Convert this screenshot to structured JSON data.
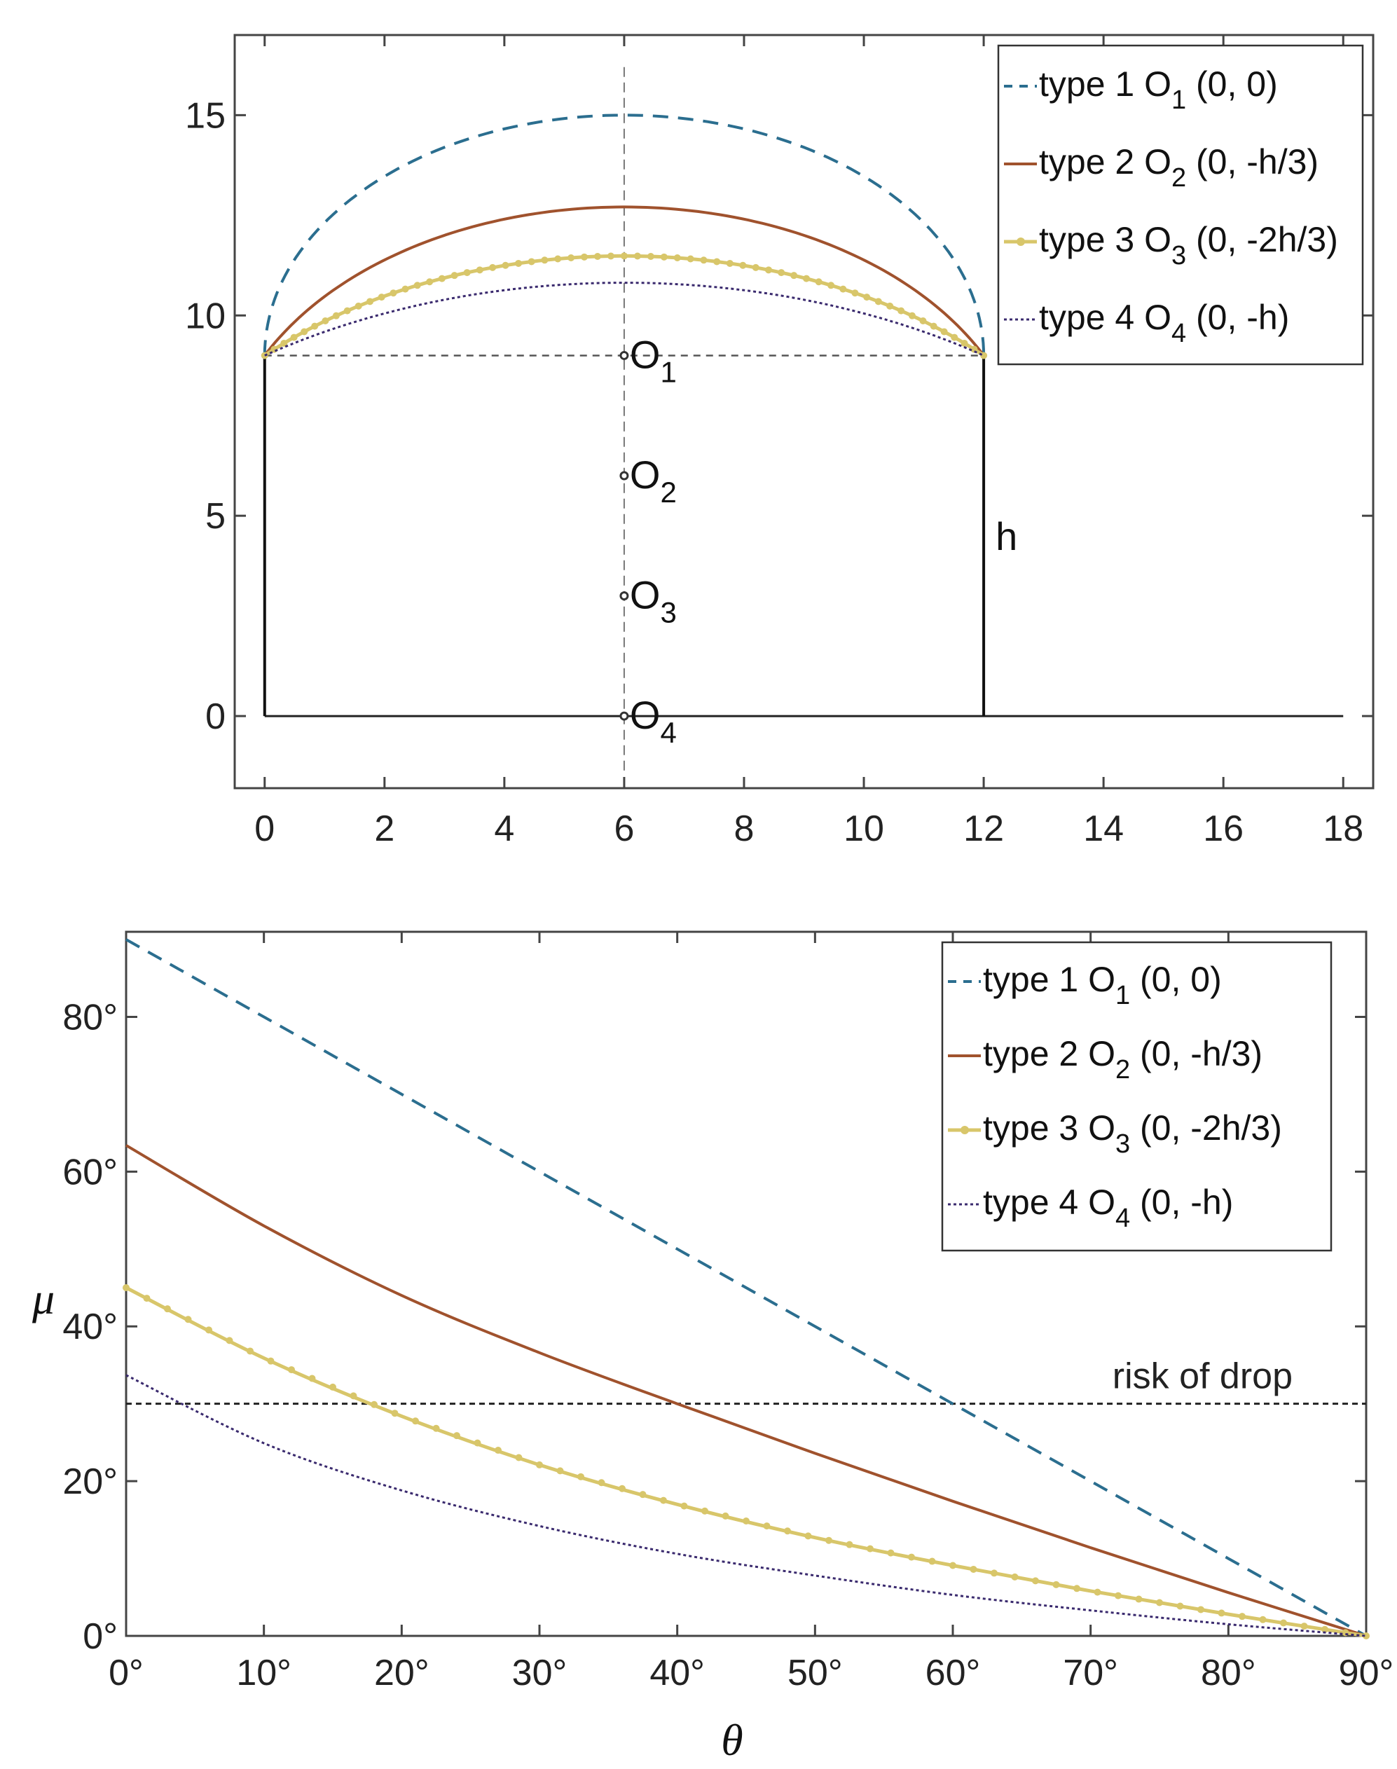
{
  "colors": {
    "type1": "#2b6e8f",
    "type2": "#a0522d",
    "type3": "#d8c66a",
    "type4": "#3a2a6e",
    "axis": "#444444",
    "structure": "#111111",
    "grid_dash": "#555555"
  },
  "chart_data": [
    {
      "type": "line",
      "title": "",
      "xlabel": "",
      "ylabel": "",
      "xlim": [
        -0.5,
        18.5
      ],
      "ylim": [
        -1.8,
        17
      ],
      "x_ticks": [
        "0",
        "2",
        "4",
        "6",
        "8",
        "10",
        "12",
        "14",
        "16",
        "18"
      ],
      "y_ticks": [
        "0",
        "5",
        "10",
        "15"
      ],
      "grid": false,
      "legend_position": "top-right",
      "series": [
        {
          "key": "type1",
          "name": "type 1",
          "center_label": "O",
          "center_sub": "1",
          "center_coords": " (0, 0)",
          "style": "dashed",
          "center": [
            6,
            9
          ],
          "arc_start": [
            0,
            9
          ],
          "arc_end": [
            12,
            9
          ],
          "apex": [
            6,
            15
          ]
        },
        {
          "key": "type2",
          "name": "type 2",
          "center_label": "O",
          "center_sub": "2",
          "center_coords": " (0, -h/3)",
          "style": "solid",
          "center": [
            6,
            6
          ],
          "arc_start": [
            0,
            9
          ],
          "arc_end": [
            12,
            9
          ],
          "apex": [
            6,
            12.71
          ]
        },
        {
          "key": "type3",
          "name": "type 3",
          "center_label": "O",
          "center_sub": "3",
          "center_coords": " (0, -2h/3)",
          "style": "markers",
          "center": [
            6,
            3
          ],
          "arc_start": [
            0,
            9
          ],
          "arc_end": [
            12,
            9
          ],
          "apex": [
            6,
            11.49
          ]
        },
        {
          "key": "type4",
          "name": "type 4",
          "center_label": "O",
          "center_sub": "4",
          "center_coords": " (0, -h)",
          "style": "dotted",
          "center": [
            6,
            0
          ],
          "arc_start": [
            0,
            9
          ],
          "arc_end": [
            12,
            9
          ],
          "apex": [
            6,
            10.82
          ]
        }
      ],
      "structure": {
        "width": 12,
        "height": 9,
        "ground_end": 18
      },
      "annotations": [
        {
          "text": "O",
          "sub": "1",
          "x": 6,
          "y": 9
        },
        {
          "text": "O",
          "sub": "2",
          "x": 6,
          "y": 6
        },
        {
          "text": "O",
          "sub": "3",
          "x": 6,
          "y": 3
        },
        {
          "text": "O",
          "sub": "4",
          "x": 6,
          "y": 0
        },
        {
          "text": "h",
          "x": 12.2,
          "y": 4.5
        }
      ]
    },
    {
      "type": "line",
      "title": "",
      "xlabel": "θ",
      "ylabel": "μ",
      "xlim": [
        0,
        90
      ],
      "ylim": [
        0,
        91
      ],
      "x_ticks": [
        "0°",
        "10°",
        "20°",
        "30°",
        "40°",
        "50°",
        "60°",
        "70°",
        "80°",
        "90°"
      ],
      "y_ticks": [
        "0°",
        "20°",
        "40°",
        "60°",
        "80°"
      ],
      "grid": false,
      "legend_position": "top-right",
      "series": [
        {
          "key": "type1",
          "name": "type 1",
          "center_label": "O",
          "center_sub": "1",
          "center_coords": " (0, 0)",
          "style": "dashed",
          "x": [
            0,
            10,
            20,
            30,
            40,
            50,
            60,
            70,
            80,
            90
          ],
          "y": [
            90,
            80,
            70,
            60,
            50,
            40,
            30,
            20,
            10,
            0
          ]
        },
        {
          "key": "type2",
          "name": "type 2",
          "center_label": "O",
          "center_sub": "2",
          "center_coords": " (0, -h/3)",
          "style": "solid",
          "x": [
            0,
            10,
            20,
            30,
            40,
            50,
            60,
            70,
            80,
            90
          ],
          "y": [
            63.4,
            53.0,
            44.0,
            36.6,
            30.0,
            23.6,
            17.4,
            11.4,
            5.6,
            0
          ]
        },
        {
          "key": "type3",
          "name": "type 3",
          "center_label": "O",
          "center_sub": "3",
          "center_coords": " (0, -2h/3)",
          "style": "markers",
          "x": [
            0,
            10,
            20,
            30,
            40,
            50,
            60,
            70,
            80,
            90
          ],
          "y": [
            45.0,
            35.9,
            28.4,
            22.1,
            17.0,
            12.7,
            9.1,
            5.8,
            2.8,
            0
          ]
        },
        {
          "key": "type4",
          "name": "type 4",
          "center_label": "O",
          "center_sub": "4",
          "center_coords": " (0, -h)",
          "style": "dotted",
          "x": [
            0,
            10,
            20,
            30,
            40,
            50,
            60,
            70,
            80,
            90
          ],
          "y": [
            33.7,
            24.9,
            18.8,
            14.2,
            10.6,
            7.8,
            5.3,
            3.3,
            1.5,
            0
          ]
        }
      ],
      "threshold": {
        "y": 30,
        "label": "risk of drop"
      }
    }
  ]
}
